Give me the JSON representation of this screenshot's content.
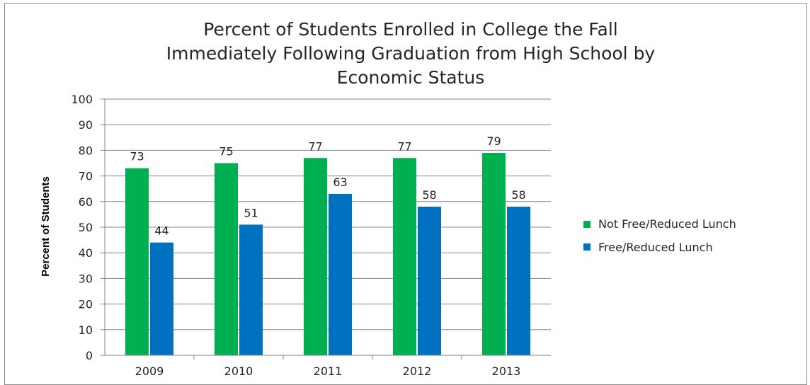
{
  "chart_data": {
    "type": "bar",
    "title_lines": [
      "Percent of Students Enrolled in College the Fall",
      "Immediately Following Graduation from High School by",
      "Economic Status"
    ],
    "xlabel": "",
    "ylabel": "Percent of Students",
    "categories": [
      "2009",
      "2010",
      "2011",
      "2012",
      "2013"
    ],
    "series": [
      {
        "name": "Not Free/Reduced Lunch",
        "color": "#00b050",
        "values": [
          73,
          75,
          77,
          77,
          79
        ]
      },
      {
        "name": "Free/Reduced Lunch",
        "color": "#0070c0",
        "values": [
          44,
          51,
          63,
          58,
          58
        ]
      }
    ],
    "ylim": [
      0,
      100
    ],
    "yticks": [
      "0",
      "10",
      "20",
      "30",
      "40",
      "50",
      "60",
      "70",
      "80",
      "90",
      "100"
    ],
    "grid": true,
    "legend_position": "right",
    "data_labels": true
  }
}
